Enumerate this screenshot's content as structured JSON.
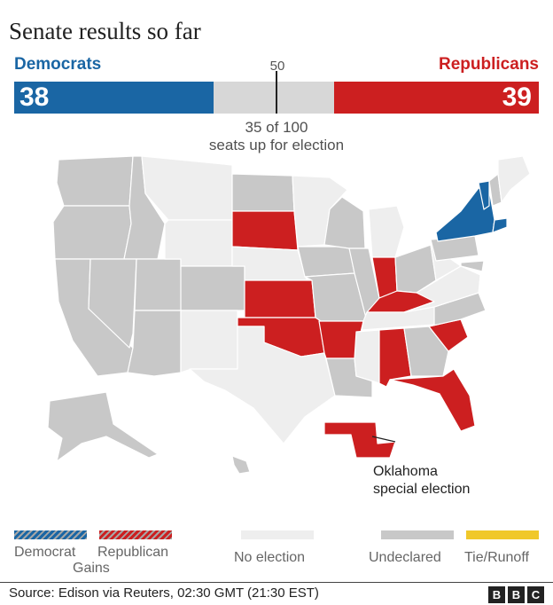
{
  "title": "Senate results so far",
  "colors": {
    "democrat": "#1a66a4",
    "republican": "#cc1f20",
    "no_election": "#eeeeee",
    "undeclared": "#c8c8c8",
    "tie_runoff": "#f0c82a"
  },
  "chart_data": {
    "type": "bar",
    "title": "Senate results so far",
    "series": [
      {
        "name": "Democrats",
        "values": [
          38
        ]
      },
      {
        "name": "Republicans",
        "values": [
          39
        ]
      }
    ],
    "total_seats": 100,
    "majority_marker": 50,
    "seats_up_text": "35 of 100",
    "seats_up_caption": "seats up for election"
  },
  "bar": {
    "dem_label": "Democrats",
    "rep_label": "Republicans",
    "dem_value": "38",
    "rep_value": "39",
    "half_label": "50"
  },
  "map": {
    "states": [
      {
        "name": "Washington",
        "status": "undeclared"
      },
      {
        "name": "Oregon",
        "status": "undeclared"
      },
      {
        "name": "California",
        "status": "undeclared"
      },
      {
        "name": "Idaho",
        "status": "undeclared"
      },
      {
        "name": "Nevada",
        "status": "undeclared"
      },
      {
        "name": "Utah",
        "status": "undeclared"
      },
      {
        "name": "Arizona",
        "status": "undeclared"
      },
      {
        "name": "Montana",
        "status": "no_election"
      },
      {
        "name": "Wyoming",
        "status": "no_election"
      },
      {
        "name": "Colorado",
        "status": "undeclared"
      },
      {
        "name": "New Mexico",
        "status": "no_election"
      },
      {
        "name": "North Dakota",
        "status": "undeclared"
      },
      {
        "name": "South Dakota",
        "status": "republican"
      },
      {
        "name": "Nebraska",
        "status": "no_election"
      },
      {
        "name": "Kansas",
        "status": "republican"
      },
      {
        "name": "Oklahoma",
        "status": "republican"
      },
      {
        "name": "Texas",
        "status": "no_election"
      },
      {
        "name": "Minnesota",
        "status": "no_election"
      },
      {
        "name": "Iowa",
        "status": "undeclared"
      },
      {
        "name": "Missouri",
        "status": "undeclared"
      },
      {
        "name": "Arkansas",
        "status": "republican"
      },
      {
        "name": "Louisiana",
        "status": "undeclared"
      },
      {
        "name": "Wisconsin",
        "status": "undeclared"
      },
      {
        "name": "Illinois",
        "status": "undeclared"
      },
      {
        "name": "Michigan",
        "status": "no_election"
      },
      {
        "name": "Indiana",
        "status": "republican"
      },
      {
        "name": "Ohio",
        "status": "undeclared"
      },
      {
        "name": "Kentucky",
        "status": "republican"
      },
      {
        "name": "Tennessee",
        "status": "no_election"
      },
      {
        "name": "Mississippi",
        "status": "no_election"
      },
      {
        "name": "Alabama",
        "status": "republican"
      },
      {
        "name": "Georgia",
        "status": "undeclared"
      },
      {
        "name": "Florida",
        "status": "republican"
      },
      {
        "name": "South Carolina",
        "status": "republican"
      },
      {
        "name": "North Carolina",
        "status": "undeclared"
      },
      {
        "name": "Virginia",
        "status": "no_election"
      },
      {
        "name": "West Virginia",
        "status": "no_election"
      },
      {
        "name": "Pennsylvania",
        "status": "undeclared"
      },
      {
        "name": "New York",
        "status": "democrat"
      },
      {
        "name": "Vermont",
        "status": "democrat"
      },
      {
        "name": "New Hampshire",
        "status": "undeclared"
      },
      {
        "name": "Maine",
        "status": "no_election"
      },
      {
        "name": "Connecticut",
        "status": "democrat"
      },
      {
        "name": "Maryland",
        "status": "undeclared"
      },
      {
        "name": "Alaska",
        "status": "undeclared"
      },
      {
        "name": "Hawaii",
        "status": "undeclared"
      },
      {
        "name": "Oklahoma special election",
        "status": "republican"
      }
    ],
    "callout_line1": "Oklahoma",
    "callout_line2": "special election"
  },
  "legend": {
    "democrat_gains": "Democrat Gains",
    "democrat": "Democrat",
    "gains": "Gains",
    "republican": "Republican",
    "no_election": "No election",
    "undeclared": "Undeclared",
    "tie_runoff": "Tie/Runoff"
  },
  "footer": {
    "source": "Source: Edison via Reuters, 02:30 GMT (21:30 EST)",
    "logo": [
      "B",
      "B",
      "C"
    ]
  }
}
